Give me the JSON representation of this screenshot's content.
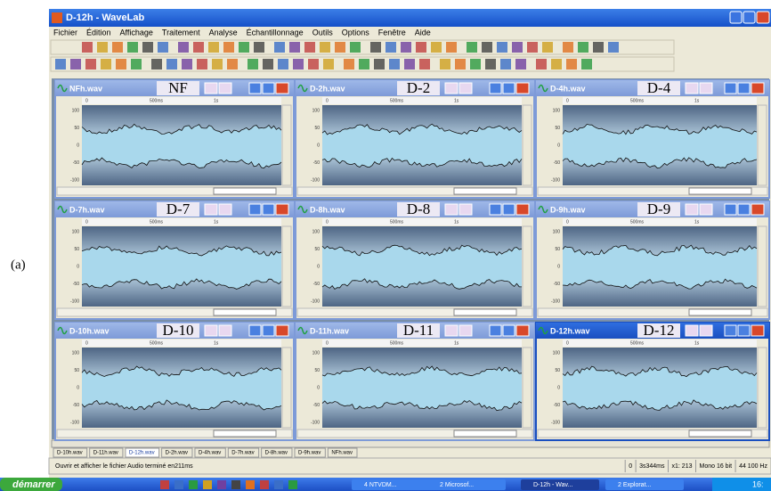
{
  "caption": "(a)",
  "app_title": "D-12h - WaveLab",
  "menu": [
    "Fichier",
    "Édition",
    "Affichage",
    "Traitement",
    "Analyse",
    "Échantillonnage",
    "Outils",
    "Options",
    "Fenêtre",
    "Aide"
  ],
  "windows": [
    {
      "file": "NFh.wav",
      "label": "NF"
    },
    {
      "file": "D-2h.wav",
      "label": "D-2"
    },
    {
      "file": "D-4h.wav",
      "label": "D-4"
    },
    {
      "file": "D-7h.wav",
      "label": "D-7"
    },
    {
      "file": "D-8h.wav",
      "label": "D-8"
    },
    {
      "file": "D-9h.wav",
      "label": "D-9"
    },
    {
      "file": "D-10h.wav",
      "label": "D-10"
    },
    {
      "file": "D-11h.wav",
      "label": "D-11"
    },
    {
      "file": "D-12h.wav",
      "label": "D-12"
    }
  ],
  "axes": {
    "y": [
      "100",
      "50",
      "0",
      "-50",
      "-100"
    ],
    "x": [
      "0",
      "500ms",
      "1s"
    ]
  },
  "tabs": [
    "D-10h.wav",
    "D-11h.wav",
    "D-12h.wav",
    "D-2h.wav",
    "D-4h.wav",
    "D-7h.wav",
    "D-8h.wav",
    "D-9h.wav",
    "NFh.wav"
  ],
  "status": {
    "message": "Ouvrir et afficher le fichier Audio terminé en211ms",
    "fields": [
      "0",
      "3s344ms",
      "x1: 213",
      "Mono 16 bit",
      "44 100 Hz"
    ]
  },
  "taskbar": {
    "start": "démarrer",
    "items": [
      "4 NTVDM...",
      "2 Microsof...",
      "D-12h - Wav...",
      "2 Explorat..."
    ],
    "clock": "16:"
  }
}
